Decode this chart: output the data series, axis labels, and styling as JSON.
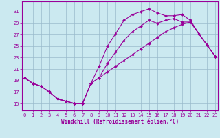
{
  "xlabel": "Windchill (Refroidissement éolien,°C)",
  "bg_color": "#cbe9f0",
  "line_color": "#990099",
  "grid_color": "#99bbcc",
  "x_ticks": [
    0,
    1,
    2,
    3,
    4,
    5,
    6,
    7,
    8,
    9,
    10,
    11,
    12,
    13,
    14,
    15,
    16,
    17,
    18,
    19,
    20,
    21,
    22,
    23
  ],
  "y_ticks": [
    15,
    17,
    19,
    21,
    23,
    25,
    27,
    29,
    31
  ],
  "xlim": [
    -0.3,
    23.3
  ],
  "ylim": [
    13.8,
    32.8
  ],
  "curve1_x": [
    0,
    1,
    2,
    3,
    4,
    5,
    6,
    7,
    8,
    9,
    10,
    11,
    12,
    13,
    14,
    15,
    16,
    17,
    18,
    19,
    20,
    21,
    22,
    23
  ],
  "curve1_y": [
    19.5,
    18.5,
    18.0,
    17.0,
    15.8,
    15.4,
    15.0,
    15.0,
    18.5,
    21.5,
    25.0,
    27.2,
    29.5,
    30.5,
    31.0,
    31.5,
    30.8,
    30.3,
    30.3,
    30.5,
    29.5,
    27.2,
    25.2,
    23.2
  ],
  "curve2_x": [
    0,
    1,
    2,
    3,
    4,
    5,
    6,
    7,
    8,
    9,
    10,
    11,
    12,
    13,
    14,
    15,
    16,
    17,
    18,
    19,
    20,
    21,
    22,
    23
  ],
  "curve2_y": [
    19.5,
    18.5,
    18.0,
    17.0,
    15.8,
    15.4,
    15.0,
    15.0,
    18.5,
    19.5,
    22.0,
    24.0,
    26.0,
    27.5,
    28.5,
    29.5,
    29.0,
    29.5,
    29.8,
    29.2,
    29.2,
    27.2,
    25.2,
    23.2
  ],
  "curve3_x": [
    0,
    1,
    2,
    3,
    4,
    5,
    6,
    7,
    8,
    9,
    10,
    11,
    12,
    13,
    14,
    15,
    16,
    17,
    18,
    19,
    20,
    21,
    22,
    23
  ],
  "curve3_y": [
    19.5,
    18.5,
    18.0,
    17.0,
    15.8,
    15.4,
    15.0,
    15.0,
    18.5,
    19.5,
    20.5,
    21.5,
    22.5,
    23.5,
    24.5,
    25.5,
    26.5,
    27.5,
    28.2,
    28.8,
    29.2,
    27.2,
    25.2,
    23.2
  ],
  "tick_fontsize": 5.0,
  "xlabel_fontsize": 5.5,
  "marker_size": 2.0,
  "linewidth": 0.8
}
